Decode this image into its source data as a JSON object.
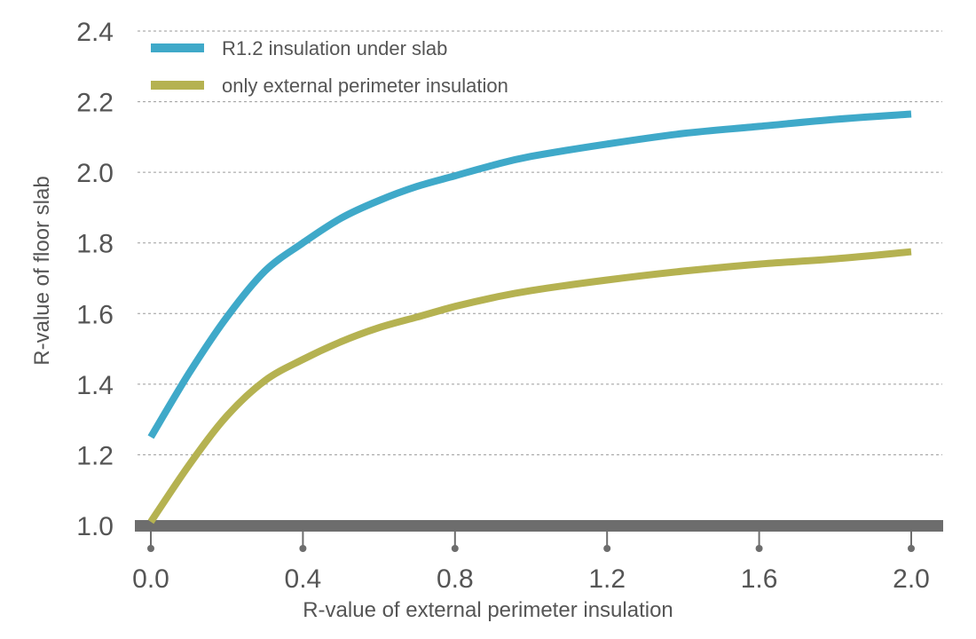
{
  "chart_data": {
    "type": "line",
    "title": "",
    "xlabel": "R-value of external perimeter insulation",
    "ylabel": "R-value of floor slab",
    "xlim": [
      0.0,
      2.0
    ],
    "ylim": [
      1.0,
      2.4
    ],
    "x_ticks": [
      "0.0",
      "0.4",
      "0.8",
      "1.2",
      "1.6",
      "2.0"
    ],
    "y_ticks": [
      "1.0",
      "1.2",
      "1.4",
      "1.6",
      "1.8",
      "2.0",
      "2.2",
      "2.4"
    ],
    "grid": true,
    "legend_position": "top-left",
    "series": [
      {
        "name": "R1.2 insulation under slab",
        "color": "#3fa9c9",
        "x": [
          0.0,
          0.1,
          0.2,
          0.3,
          0.4,
          0.5,
          0.6,
          0.7,
          0.8,
          0.9,
          1.0,
          1.2,
          1.4,
          1.6,
          1.8,
          2.0
        ],
        "y": [
          1.25,
          1.43,
          1.59,
          1.72,
          1.8,
          1.87,
          1.92,
          1.96,
          1.99,
          2.02,
          2.045,
          2.08,
          2.11,
          2.13,
          2.15,
          2.165
        ]
      },
      {
        "name": "only external perimeter insulation",
        "color": "#b5b251",
        "x": [
          0.0,
          0.1,
          0.2,
          0.3,
          0.4,
          0.5,
          0.6,
          0.7,
          0.8,
          0.9,
          1.0,
          1.2,
          1.4,
          1.6,
          1.8,
          2.0
        ],
        "y": [
          1.01,
          1.17,
          1.31,
          1.41,
          1.47,
          1.52,
          1.56,
          1.59,
          1.62,
          1.645,
          1.665,
          1.695,
          1.72,
          1.74,
          1.755,
          1.775
        ]
      }
    ]
  }
}
